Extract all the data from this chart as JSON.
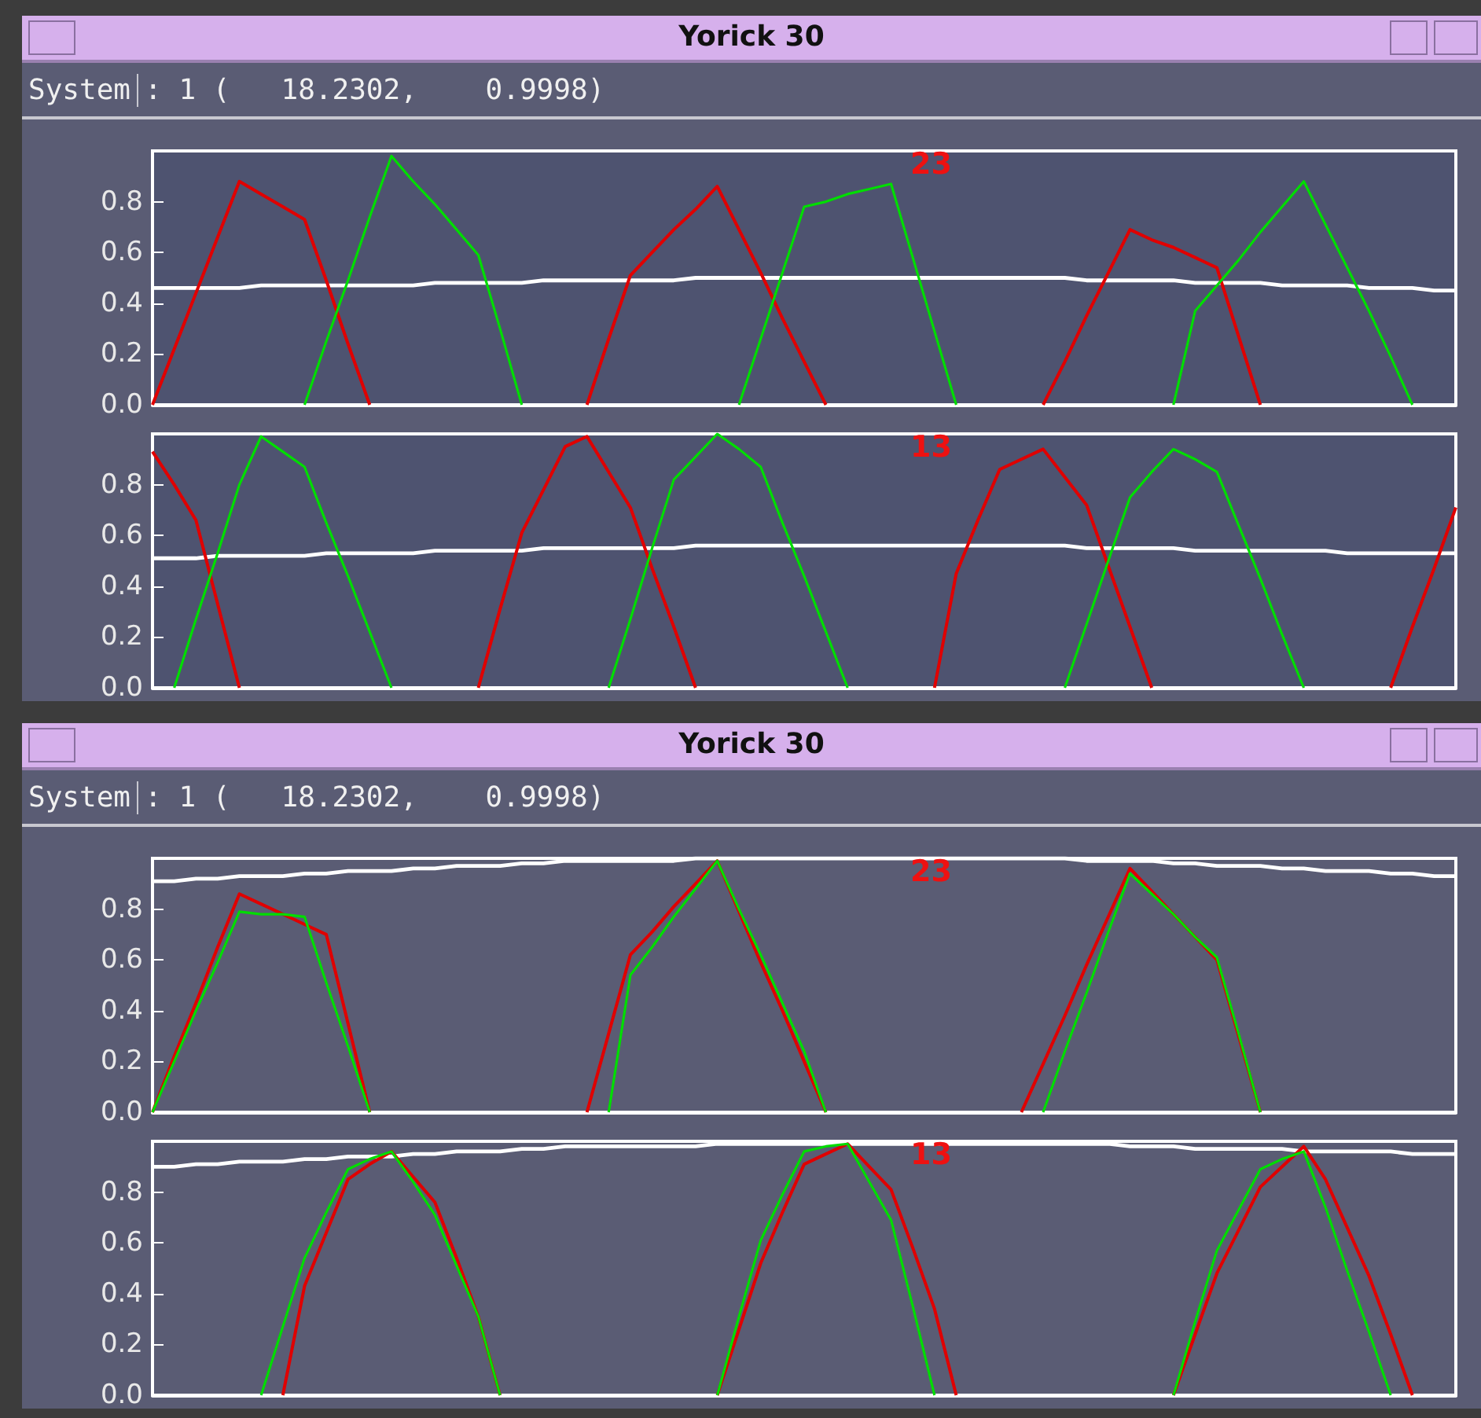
{
  "chart_data": [
    {
      "type": "line",
      "title": "23",
      "annotations": [
        "Yorick 30",
        "System",
        ": 1 (   18.2302,    0.9998)"
      ],
      "categories": [
        null,
        null,
        null,
        null,
        null,
        null,
        null,
        null,
        null,
        null,
        null,
        null,
        null,
        null,
        null,
        null,
        null,
        null,
        null,
        null,
        null,
        null,
        null,
        null,
        null,
        null,
        null,
        null,
        null,
        null,
        null,
        null,
        null,
        null,
        null,
        null,
        null,
        null,
        null,
        null,
        null,
        null,
        null,
        null,
        null,
        null,
        null,
        null,
        null,
        null,
        null,
        null,
        null,
        null,
        null,
        null,
        null,
        null,
        null,
        null,
        null
      ],
      "ylim": [
        0,
        1
      ],
      "yticks": [
        {
          "value": 0,
          "label": "0.0"
        },
        {
          "value": 0.2,
          "label": "0.2"
        },
        {
          "value": 0.4,
          "label": "0.4"
        },
        {
          "value": 0.6,
          "label": "0.6"
        },
        {
          "value": 0.8,
          "label": "0.8"
        }
      ],
      "tick_labels": "y",
      "grid": false,
      "series": [
        {
          "color": "#ffffff",
          "values": [
            0.46,
            0.46,
            0.46,
            0.46,
            0.46,
            0.47,
            0.47,
            0.47,
            0.47,
            0.47,
            0.47,
            0.47,
            0.47,
            0.48,
            0.48,
            0.48,
            0.48,
            0.48,
            0.49,
            0.49,
            0.49,
            0.49,
            0.49,
            0.49,
            0.49,
            0.5,
            0.5,
            0.5,
            0.5,
            0.5,
            0.5,
            0.5,
            0.5,
            0.5,
            0.5,
            0.5,
            0.5,
            0.5,
            0.5,
            0.5,
            0.5,
            0.5,
            0.5,
            0.49,
            0.49,
            0.49,
            0.49,
            0.49,
            0.48,
            0.48,
            0.48,
            0.48,
            0.47,
            0.47,
            0.47,
            0.47,
            0.46,
            0.46,
            0.46,
            0.45,
            0.45
          ]
        },
        {
          "color": "#e00000",
          "values": [
            0,
            0.22,
            0.44,
            0.66,
            0.88,
            0.83,
            0.78,
            0.73,
            0.49,
            0.24,
            0,
            null,
            null,
            null,
            null,
            null,
            null,
            null,
            null,
            null,
            0,
            0.26,
            0.51,
            0.6,
            0.69,
            0.77,
            0.86,
            0.69,
            0.52,
            0.34,
            0.17,
            0,
            null,
            null,
            null,
            null,
            null,
            null,
            null,
            null,
            null,
            0,
            0.17,
            0.35,
            0.52,
            0.69,
            0.65,
            0.62,
            0.58,
            0.54,
            0.27,
            0,
            null,
            null,
            null,
            null,
            null,
            null,
            null,
            null,
            null
          ]
        },
        {
          "color": "#00dd00",
          "values": [
            null,
            null,
            null,
            null,
            null,
            null,
            null,
            0,
            0.25,
            0.49,
            0.74,
            0.98,
            0.88,
            0.79,
            0.69,
            0.59,
            0.3,
            0,
            null,
            null,
            null,
            null,
            null,
            null,
            null,
            null,
            null,
            0,
            0.26,
            0.52,
            0.78,
            0.8,
            0.83,
            0.85,
            0.87,
            0.58,
            0.29,
            0,
            null,
            null,
            null,
            null,
            null,
            null,
            null,
            null,
            null,
            0,
            0.37,
            0.47,
            0.57,
            0.68,
            0.78,
            0.88,
            0.71,
            0.54,
            0.37,
            0.19,
            0,
            null,
            null
          ]
        }
      ]
    },
    {
      "type": "line",
      "title": "13",
      "categories": [
        null,
        null,
        null,
        null,
        null,
        null,
        null,
        null,
        null,
        null,
        null,
        null,
        null,
        null,
        null,
        null,
        null,
        null,
        null,
        null,
        null,
        null,
        null,
        null,
        null,
        null,
        null,
        null,
        null,
        null,
        null,
        null,
        null,
        null,
        null,
        null,
        null,
        null,
        null,
        null,
        null,
        null,
        null,
        null,
        null,
        null,
        null,
        null,
        null,
        null,
        null,
        null,
        null,
        null,
        null,
        null,
        null,
        null,
        null,
        null,
        null
      ],
      "ylim": [
        0,
        1
      ],
      "yticks": [
        {
          "value": 0,
          "label": "0.0"
        },
        {
          "value": 0.2,
          "label": "0.2"
        },
        {
          "value": 0.4,
          "label": "0.4"
        },
        {
          "value": 0.6,
          "label": "0.6"
        },
        {
          "value": 0.8,
          "label": "0.8"
        }
      ],
      "tick_labels": "y",
      "grid": false,
      "series": [
        {
          "color": "#ffffff",
          "values": [
            0.51,
            0.51,
            0.51,
            0.52,
            0.52,
            0.52,
            0.52,
            0.52,
            0.53,
            0.53,
            0.53,
            0.53,
            0.53,
            0.54,
            0.54,
            0.54,
            0.54,
            0.54,
            0.55,
            0.55,
            0.55,
            0.55,
            0.55,
            0.55,
            0.55,
            0.56,
            0.56,
            0.56,
            0.56,
            0.56,
            0.56,
            0.56,
            0.56,
            0.56,
            0.56,
            0.56,
            0.56,
            0.56,
            0.56,
            0.56,
            0.56,
            0.56,
            0.56,
            0.55,
            0.55,
            0.55,
            0.55,
            0.55,
            0.54,
            0.54,
            0.54,
            0.54,
            0.54,
            0.54,
            0.54,
            0.53,
            0.53,
            0.53,
            0.53,
            0.53,
            0.53
          ]
        },
        {
          "color": "#e00000",
          "values": [
            0.93,
            0.8,
            0.66,
            0.33,
            0,
            null,
            null,
            null,
            null,
            null,
            null,
            null,
            null,
            null,
            null,
            0,
            0.31,
            0.61,
            0.78,
            0.95,
            0.99,
            0.85,
            0.71,
            0.47,
            0.24,
            0,
            null,
            null,
            null,
            null,
            null,
            null,
            null,
            null,
            null,
            null,
            0,
            0.45,
            0.66,
            0.86,
            0.9,
            0.94,
            0.83,
            0.72,
            0.48,
            0.24,
            0,
            null,
            null,
            null,
            null,
            null,
            null,
            null,
            null,
            null,
            null,
            0,
            0.24,
            0.47,
            0.71
          ]
        },
        {
          "color": "#00dd00",
          "values": [
            null,
            0,
            0.27,
            0.53,
            0.8,
            0.99,
            0.93,
            0.87,
            0.65,
            0.44,
            0.22,
            0,
            null,
            null,
            null,
            null,
            null,
            null,
            null,
            null,
            null,
            0,
            0.27,
            0.55,
            0.82,
            0.91,
            1.0,
            0.94,
            0.87,
            0.65,
            0.44,
            0.22,
            0,
            null,
            null,
            null,
            null,
            null,
            null,
            null,
            null,
            null,
            0,
            0.25,
            0.5,
            0.75,
            0.85,
            0.94,
            0.9,
            0.85,
            0.64,
            0.43,
            0.21,
            0,
            null,
            null,
            null,
            null,
            null,
            null,
            null
          ]
        }
      ]
    },
    {
      "type": "line",
      "title": "23",
      "annotations": [
        "Yorick 30",
        "System",
        ": 1 (   18.2302,    0.9998)"
      ],
      "categories": [
        null,
        null,
        null,
        null,
        null,
        null,
        null,
        null,
        null,
        null,
        null,
        null,
        null,
        null,
        null,
        null,
        null,
        null,
        null,
        null,
        null,
        null,
        null,
        null,
        null,
        null,
        null,
        null,
        null,
        null,
        null,
        null,
        null,
        null,
        null,
        null,
        null,
        null,
        null,
        null,
        null,
        null,
        null,
        null,
        null,
        null,
        null,
        null,
        null,
        null,
        null,
        null,
        null,
        null,
        null,
        null,
        null,
        null,
        null,
        null,
        null
      ],
      "ylim": [
        0,
        1
      ],
      "yticks": [
        {
          "value": 0,
          "label": "0.0"
        },
        {
          "value": 0.2,
          "label": "0.2"
        },
        {
          "value": 0.4,
          "label": "0.4"
        },
        {
          "value": 0.6,
          "label": "0.6"
        },
        {
          "value": 0.8,
          "label": "0.8"
        }
      ],
      "tick_labels": "y",
      "grid": false,
      "series": [
        {
          "color": "#ffffff",
          "values": [
            0.91,
            0.91,
            0.92,
            0.92,
            0.93,
            0.93,
            0.93,
            0.94,
            0.94,
            0.95,
            0.95,
            0.95,
            0.96,
            0.96,
            0.97,
            0.97,
            0.97,
            0.98,
            0.98,
            0.99,
            0.99,
            0.99,
            0.99,
            0.99,
            0.99,
            1.0,
            1.0,
            1.0,
            1.0,
            1.0,
            1.0,
            1.0,
            1.0,
            1.0,
            1.0,
            1.0,
            1.0,
            1.0,
            1.0,
            1.0,
            1.0,
            1.0,
            1.0,
            0.99,
            0.99,
            0.99,
            0.99,
            0.98,
            0.98,
            0.97,
            0.97,
            0.97,
            0.96,
            0.96,
            0.95,
            0.95,
            0.95,
            0.94,
            0.94,
            0.93,
            0.93
          ]
        },
        {
          "color": "#e00000",
          "values": [
            0,
            0.22,
            0.43,
            0.65,
            0.86,
            0.82,
            0.78,
            0.74,
            0.7,
            0.35,
            0,
            null,
            null,
            null,
            null,
            null,
            null,
            null,
            null,
            null,
            0,
            0.31,
            0.62,
            0.71,
            0.81,
            0.9,
            0.99,
            0.79,
            0.59,
            0.4,
            0.2,
            0,
            null,
            null,
            null,
            null,
            null,
            null,
            null,
            null,
            0,
            0.19,
            0.38,
            0.58,
            0.77,
            0.96,
            0.87,
            0.78,
            0.69,
            0.6,
            0.3,
            0,
            null,
            null,
            null,
            null,
            null,
            null,
            null,
            null,
            null
          ]
        },
        {
          "color": "#00dd00",
          "values": [
            0,
            0.2,
            0.4,
            0.59,
            0.79,
            0.78,
            0.78,
            0.77,
            0.51,
            0.26,
            0,
            null,
            null,
            null,
            null,
            null,
            null,
            null,
            null,
            null,
            null,
            0,
            0.54,
            0.65,
            0.77,
            0.88,
            0.99,
            0.8,
            0.62,
            0.43,
            0.24,
            0,
            null,
            null,
            null,
            null,
            null,
            null,
            null,
            null,
            null,
            0,
            0.24,
            0.47,
            0.71,
            0.94,
            0.86,
            0.78,
            0.69,
            0.61,
            0.31,
            0,
            null,
            null,
            null,
            null,
            null,
            null,
            null,
            null,
            null
          ]
        }
      ]
    },
    {
      "type": "line",
      "title": "13",
      "categories": [
        null,
        null,
        null,
        null,
        null,
        null,
        null,
        null,
        null,
        null,
        null,
        null,
        null,
        null,
        null,
        null,
        null,
        null,
        null,
        null,
        null,
        null,
        null,
        null,
        null,
        null,
        null,
        null,
        null,
        null,
        null,
        null,
        null,
        null,
        null,
        null,
        null,
        null,
        null,
        null,
        null,
        null,
        null,
        null,
        null,
        null,
        null,
        null,
        null,
        null,
        null,
        null,
        null,
        null,
        null,
        null,
        null,
        null,
        null,
        null,
        null
      ],
      "ylim": [
        0,
        1
      ],
      "yticks": [
        {
          "value": 0,
          "label": "0.0"
        },
        {
          "value": 0.2,
          "label": "0.2"
        },
        {
          "value": 0.4,
          "label": "0.4"
        },
        {
          "value": 0.6,
          "label": "0.6"
        },
        {
          "value": 0.8,
          "label": "0.8"
        }
      ],
      "tick_labels": "y",
      "grid": false,
      "series": [
        {
          "color": "#ffffff",
          "values": [
            0.9,
            0.9,
            0.91,
            0.91,
            0.92,
            0.92,
            0.92,
            0.93,
            0.93,
            0.94,
            0.94,
            0.94,
            0.95,
            0.95,
            0.96,
            0.96,
            0.96,
            0.97,
            0.97,
            0.98,
            0.98,
            0.98,
            0.98,
            0.98,
            0.98,
            0.98,
            0.99,
            0.99,
            0.99,
            0.99,
            0.99,
            0.99,
            0.99,
            0.99,
            0.99,
            0.99,
            0.99,
            0.99,
            0.99,
            0.99,
            0.99,
            0.99,
            0.99,
            0.99,
            0.99,
            0.98,
            0.98,
            0.98,
            0.97,
            0.97,
            0.97,
            0.97,
            0.97,
            0.96,
            0.96,
            0.96,
            0.96,
            0.96,
            0.95,
            0.95,
            0.95
          ]
        },
        {
          "color": "#e00000",
          "values": [
            null,
            null,
            null,
            null,
            null,
            null,
            0,
            0.43,
            0.64,
            0.85,
            0.91,
            0.96,
            0.86,
            0.76,
            0.54,
            0.31,
            0,
            null,
            null,
            null,
            null,
            null,
            null,
            null,
            null,
            null,
            0,
            0.26,
            0.52,
            0.72,
            0.91,
            0.95,
            0.99,
            0.9,
            0.81,
            0.58,
            0.34,
            0,
            null,
            null,
            null,
            null,
            null,
            null,
            null,
            null,
            null,
            0,
            0.24,
            0.48,
            0.65,
            0.82,
            0.9,
            0.98,
            0.85,
            0.66,
            0.47,
            0.24,
            0,
            null,
            null
          ]
        },
        {
          "color": "#00dd00",
          "values": [
            null,
            null,
            null,
            null,
            null,
            0,
            0.27,
            0.54,
            0.72,
            0.89,
            0.93,
            0.96,
            0.84,
            0.71,
            0.51,
            0.31,
            0,
            null,
            null,
            null,
            null,
            null,
            null,
            null,
            null,
            null,
            0,
            0.31,
            0.61,
            0.79,
            0.96,
            0.98,
            0.99,
            0.84,
            0.69,
            0.35,
            0,
            null,
            null,
            null,
            null,
            null,
            null,
            null,
            null,
            null,
            null,
            0,
            0.29,
            0.57,
            0.73,
            0.89,
            0.93,
            0.96,
            0.74,
            0.49,
            0.25,
            0,
            null,
            null,
            null
          ]
        }
      ]
    }
  ]
}
